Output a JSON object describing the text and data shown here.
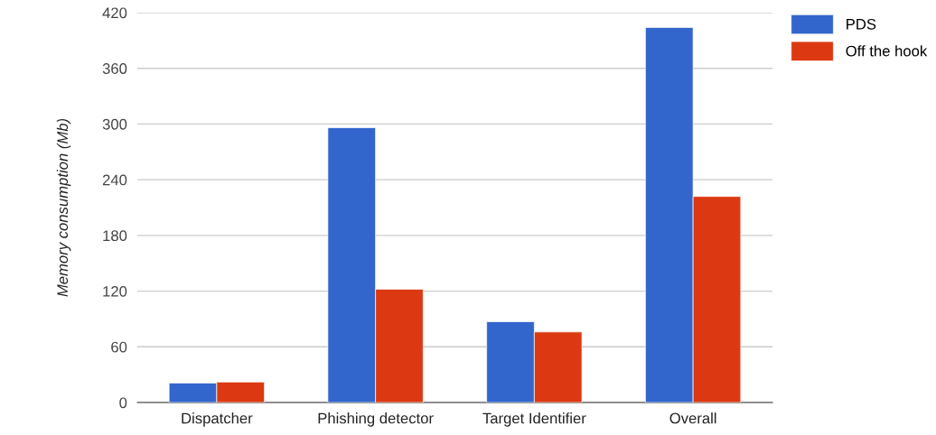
{
  "chart_data": {
    "type": "bar",
    "ylabel": "Memory consumption (Mb)",
    "categories": [
      "Dispatcher",
      "Phishing detector",
      "Target Identifier",
      "Overall"
    ],
    "series": [
      {
        "name": "PDS",
        "color": "#3366cc",
        "values": [
          21,
          296,
          87,
          404
        ]
      },
      {
        "name": "Off the hook",
        "color": "#dc3912",
        "values": [
          22,
          122,
          76,
          222
        ]
      }
    ],
    "ylim": [
      0,
      420
    ],
    "yticks": [
      0,
      60,
      120,
      180,
      240,
      300,
      360,
      420
    ],
    "grid": "y",
    "legend": "top right"
  }
}
